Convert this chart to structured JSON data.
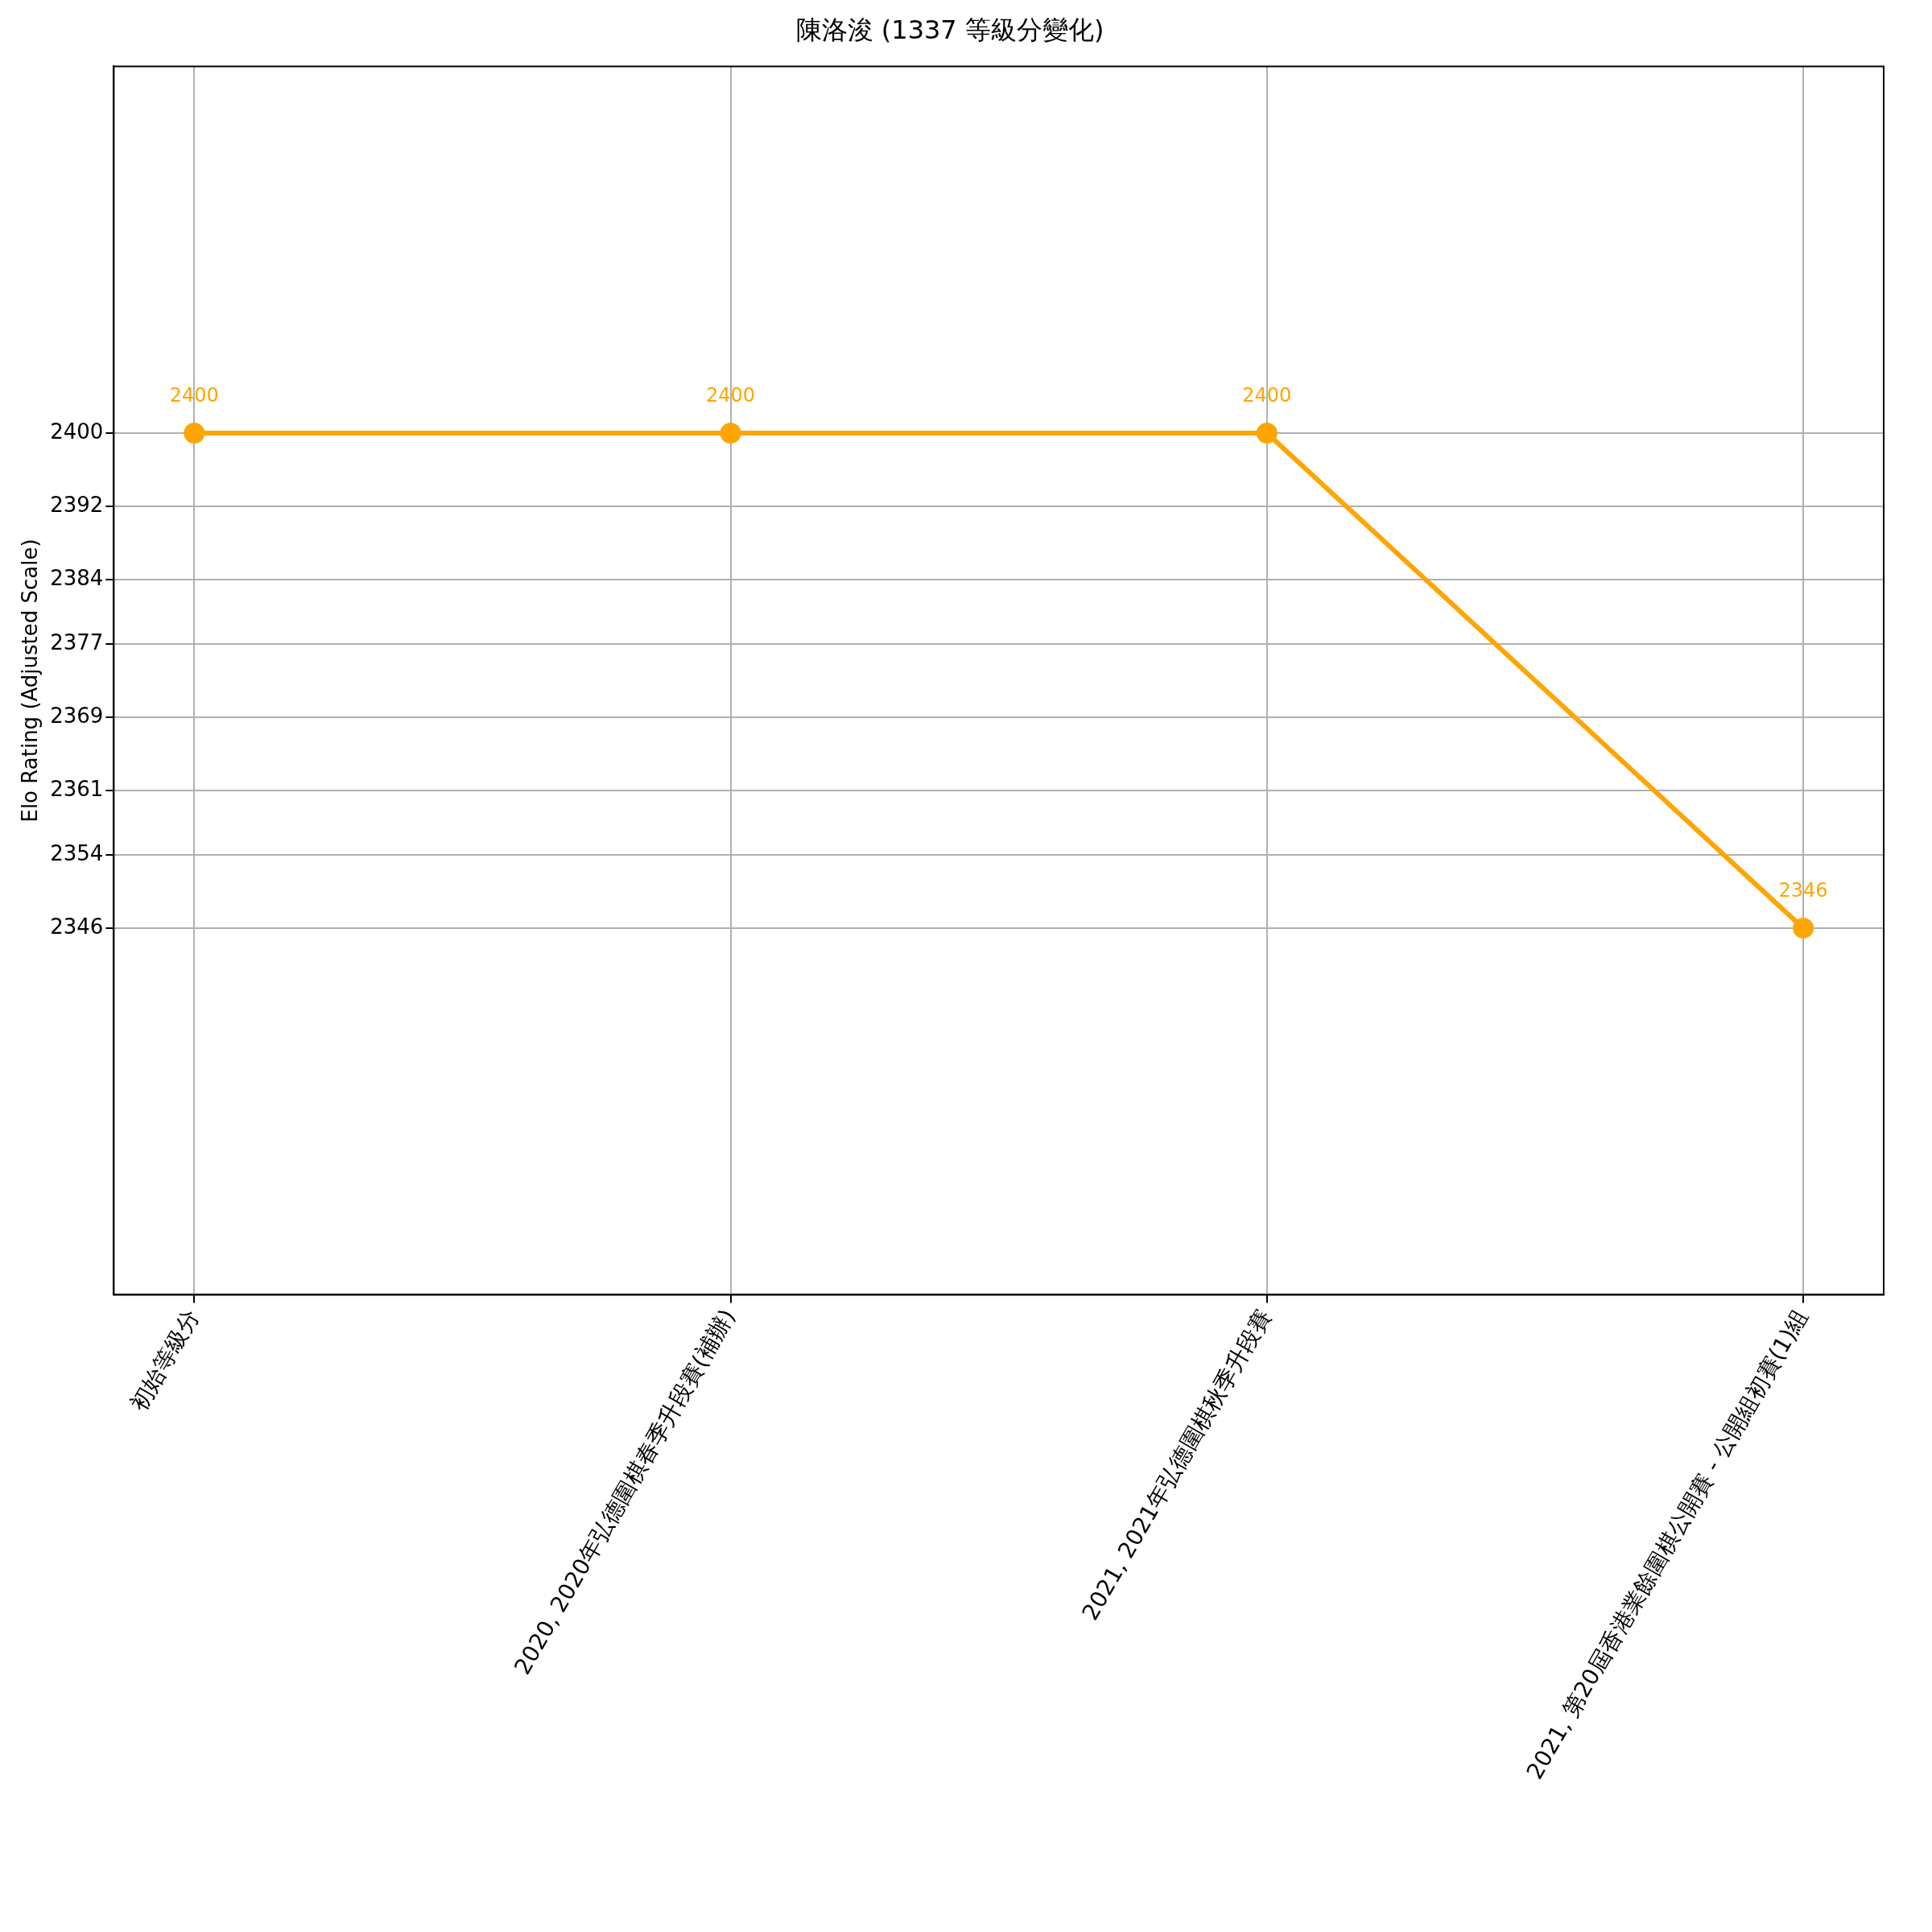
{
  "chart_data": {
    "type": "line",
    "title": "陳洛浚 (1337 等級分變化)",
    "ylabel": "Elo Rating (Adjusted Scale)",
    "categories": [
      "初始等級分",
      "2020, 2020年弘德圍棋春季升段賽(補辦)",
      "2021, 2021年弘德圍棋秋季升段賽",
      "2021, 第20屆香港業餘圍棋公開賽 - 公開組初賽(1)組"
    ],
    "series": [
      {
        "color": "#ffa500",
        "values": [
          2400,
          2400,
          2400,
          2346
        ]
      }
    ],
    "ylim": [
      2306,
      2440
    ],
    "yticks": [
      2346,
      2354,
      2361,
      2369,
      2377,
      2384,
      2392,
      2400
    ],
    "grid": true,
    "legend": false,
    "marker": "circle",
    "line_style": "solid",
    "data_labels": true
  }
}
